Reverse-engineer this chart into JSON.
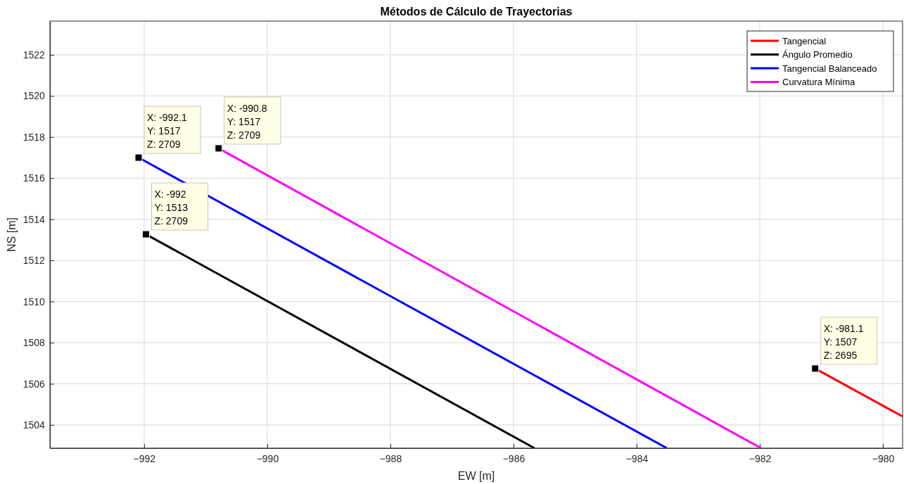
{
  "chart_data": {
    "type": "line",
    "title": "Métodos de Cálculo de Trayectorias",
    "xlabel": "EW [m]",
    "ylabel": "NS [m]",
    "xlim": [
      -993.53,
      -979.68
    ],
    "ylim": [
      1502.87,
      1523.64
    ],
    "xticks": [
      -992,
      -990,
      -988,
      -986,
      -984,
      -982,
      -980
    ],
    "yticks": [
      1504,
      1506,
      1508,
      1510,
      1512,
      1514,
      1516,
      1518,
      1520,
      1522
    ],
    "grid": true,
    "legend": "top right",
    "line_style": "solid",
    "series": [
      {
        "name": "Tangencial",
        "color": "#ff0000",
        "x": [
          -981.1,
          -979.68
        ],
        "values": [
          1506.74,
          1504.41
        ]
      },
      {
        "name": "Ángulo Promedio",
        "color": "#000000",
        "x": [
          -991.97,
          -985.66
        ],
        "values": [
          1513.27,
          1502.87
        ]
      },
      {
        "name": "Tangencial Balanceado",
        "color": "#0000ff",
        "x": [
          -992.09,
          -983.51
        ],
        "values": [
          1517.0,
          1502.87
        ]
      },
      {
        "name": "Curvatura Mínima",
        "color": "#ff00ff",
        "x": [
          -990.79,
          -981.98
        ],
        "values": [
          1517.45,
          1502.87
        ]
      }
    ],
    "annotations": [
      {
        "text": "X: -992.1\nY: 1517\nZ: 2709",
        "x": -992.09,
        "y": 1517.0
      },
      {
        "text": "X: -990.8\nY: 1517\nZ: 2709",
        "x": -990.79,
        "y": 1517.45
      },
      {
        "text": "X: -992\nY: 1513\nZ: 2709",
        "x": -991.97,
        "y": 1513.27
      },
      {
        "text": "X: -981.1\nY: 1507\nZ: 2695",
        "x": -981.1,
        "y": 1506.74
      }
    ]
  }
}
